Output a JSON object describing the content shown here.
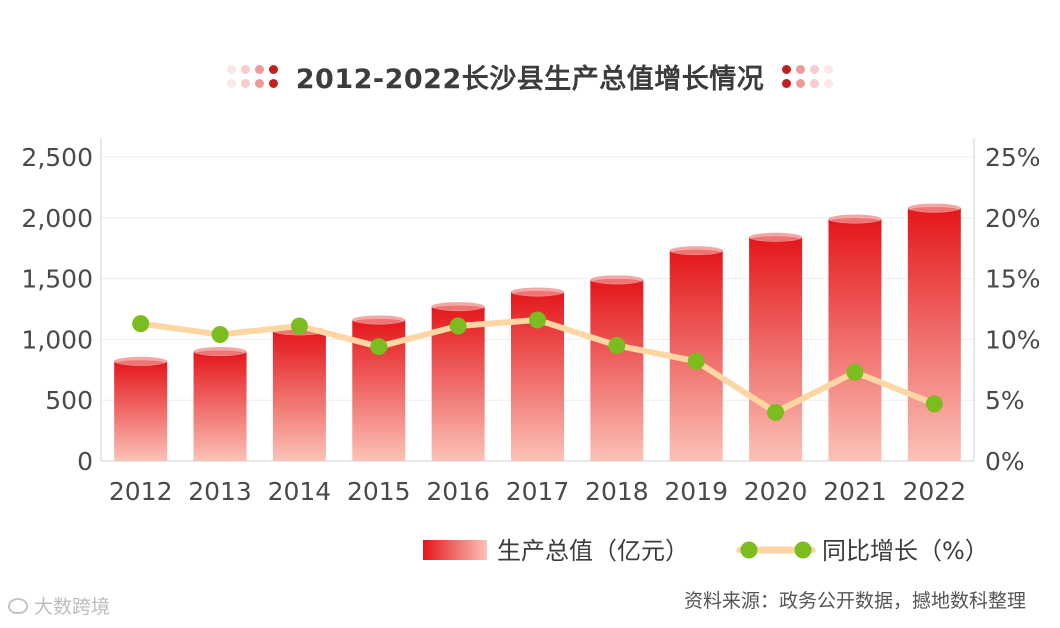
{
  "chart_data": {
    "type": "bar",
    "title": "2012-2022长沙县生产总值增长情况",
    "categories": [
      "2012",
      "2013",
      "2014",
      "2015",
      "2016",
      "2017",
      "2018",
      "2019",
      "2020",
      "2021",
      "2022"
    ],
    "series": [
      {
        "name": "生产总值（亿元）",
        "type": "bar",
        "axis": "left",
        "values": [
          820,
          900,
          1070,
          1160,
          1270,
          1390,
          1490,
          1730,
          1840,
          1990,
          2080
        ]
      },
      {
        "name": "同比增长（%）",
        "type": "line",
        "axis": "right",
        "values": [
          11.3,
          10.4,
          11.1,
          9.4,
          11.1,
          11.6,
          9.5,
          8.2,
          4.0,
          7.3,
          4.7
        ]
      }
    ],
    "y_left": {
      "min": 0,
      "max": 2500,
      "ticks": [
        "0",
        "500",
        "1,000",
        "1,500",
        "2,000",
        "2,500"
      ]
    },
    "y_right": {
      "min": 0,
      "max": 25,
      "ticks": [
        "0%",
        "5%",
        "10%",
        "15%",
        "20%",
        "25%"
      ]
    },
    "xlabel": "",
    "ylabel": "",
    "grid": true,
    "legend_position": "bottom-right",
    "colors": {
      "bar_top": "#e4161b",
      "bar_bottom": "#fbc2b7",
      "bar_cap": "#f5a7a5",
      "line": "#fdd6a4",
      "marker": "#7bbd1e"
    }
  },
  "source_note": "资料来源：政务公开数据，撼地数科整理",
  "watermark": "大数跨境",
  "watermark_icon": "weibo-icon"
}
